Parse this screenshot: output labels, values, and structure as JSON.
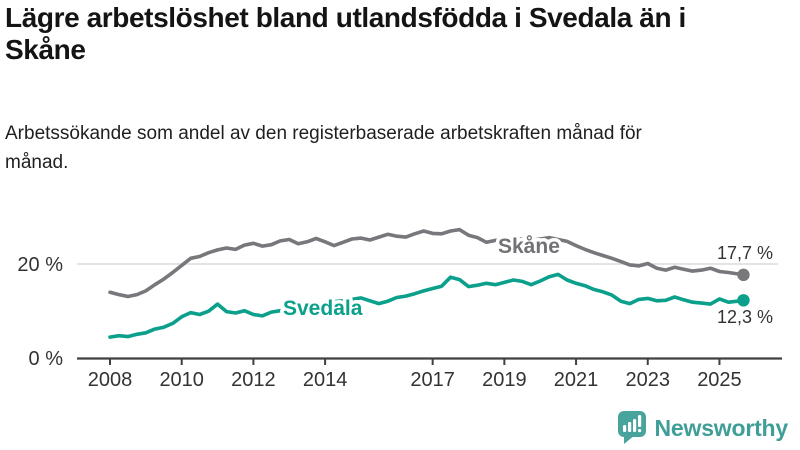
{
  "header": {
    "title": "Lägre arbetslöshet bland utlandsfödda i Svedala än i Skåne",
    "subtitle": "Arbetssökande som andel av den registerbaserade arbetskraften månad för månad."
  },
  "footer": {
    "brand": "Newsworthy",
    "logo_icon": "bar-chart-speech-bubble-icon"
  },
  "colors": {
    "skane_line": "#77777c",
    "skane_label": "#717176",
    "svedala_line": "#0aa08c",
    "gridline": "#dcdcdc",
    "axis": "#404040",
    "tick_text": "#333333",
    "title_text": "#141414",
    "brand_teal": "#3f9e97",
    "brand_icon": "#47a39b"
  },
  "chart_data": {
    "type": "line",
    "title": "",
    "xlabel": "",
    "ylabel": "",
    "unit": "%",
    "grid": "single horizontal gridline at 20 %",
    "legend": "inline labels on lines",
    "xlim": [
      2008,
      2025.8
    ],
    "ylim": [
      0,
      30
    ],
    "x_ticks": [
      2008,
      2010,
      2012,
      2014,
      2017,
      2019,
      2021,
      2023,
      2025
    ],
    "y_ticks": [
      {
        "value": 0,
        "label": "0 %"
      },
      {
        "value": 20,
        "label": "20 %"
      }
    ],
    "x": [
      2008,
      2008.25,
      2008.5,
      2008.75,
      2009,
      2009.25,
      2009.5,
      2009.75,
      2010,
      2010.25,
      2010.5,
      2010.75,
      2011,
      2011.25,
      2011.5,
      2011.75,
      2012,
      2012.25,
      2012.5,
      2012.75,
      2013,
      2013.25,
      2013.5,
      2013.75,
      2014,
      2014.25,
      2014.5,
      2014.75,
      2015,
      2015.25,
      2015.5,
      2015.75,
      2016,
      2016.25,
      2016.5,
      2016.75,
      2017,
      2017.25,
      2017.5,
      2017.75,
      2018,
      2018.25,
      2018.5,
      2018.75,
      2019,
      2019.25,
      2019.5,
      2019.75,
      2020,
      2020.25,
      2020.5,
      2020.75,
      2021,
      2021.25,
      2021.5,
      2021.75,
      2022,
      2022.25,
      2022.5,
      2022.75,
      2023,
      2023.25,
      2023.5,
      2023.75,
      2024,
      2024.25,
      2024.5,
      2024.75,
      2025,
      2025.25,
      2025.5,
      2025.67
    ],
    "series": [
      {
        "name": "Skåne",
        "color": "#77777c",
        "end_label": "17,7 %",
        "end_value": 17.7,
        "values": [
          14.0,
          13.5,
          13.1,
          13.5,
          14.3,
          15.6,
          16.8,
          18.2,
          19.7,
          21.2,
          21.6,
          22.4,
          23.0,
          23.4,
          23.1,
          24.0,
          24.4,
          23.8,
          24.1,
          24.9,
          25.2,
          24.3,
          24.7,
          25.4,
          24.7,
          23.9,
          24.6,
          25.3,
          25.5,
          25.1,
          25.7,
          26.3,
          25.9,
          25.7,
          26.4,
          27.0,
          26.5,
          26.4,
          27.0,
          27.3,
          26.1,
          25.6,
          24.6,
          25.0,
          25.3,
          25.6,
          25.2,
          25.0,
          25.3,
          25.6,
          25.2,
          24.8,
          23.9,
          23.1,
          22.4,
          21.8,
          21.2,
          20.5,
          19.8,
          19.6,
          20.1,
          19.1,
          18.7,
          19.3,
          18.9,
          18.5,
          18.7,
          19.1,
          18.4,
          18.2,
          17.9,
          17.7
        ]
      },
      {
        "name": "Svedala",
        "color": "#0aa08c",
        "end_label": "12,3 %",
        "end_value": 12.3,
        "values": [
          4.5,
          4.8,
          4.6,
          5.1,
          5.4,
          6.2,
          6.6,
          7.4,
          8.8,
          9.7,
          9.3,
          10.0,
          11.5,
          9.9,
          9.6,
          10.1,
          9.3,
          9.0,
          9.8,
          10.1,
          10.5,
          10.8,
          11.1,
          11.4,
          11.7,
          12.0,
          12.2,
          12.5,
          12.8,
          12.2,
          11.6,
          12.1,
          12.9,
          13.2,
          13.7,
          14.3,
          14.8,
          15.3,
          17.2,
          16.7,
          15.2,
          15.5,
          15.9,
          15.6,
          16.1,
          16.6,
          16.3,
          15.6,
          16.4,
          17.3,
          17.8,
          16.6,
          15.9,
          15.4,
          14.6,
          14.1,
          13.4,
          12.1,
          11.6,
          12.5,
          12.7,
          12.2,
          12.3,
          13.0,
          12.4,
          11.9,
          11.7,
          11.5,
          12.6,
          11.9,
          12.1,
          12.3
        ]
      }
    ]
  }
}
